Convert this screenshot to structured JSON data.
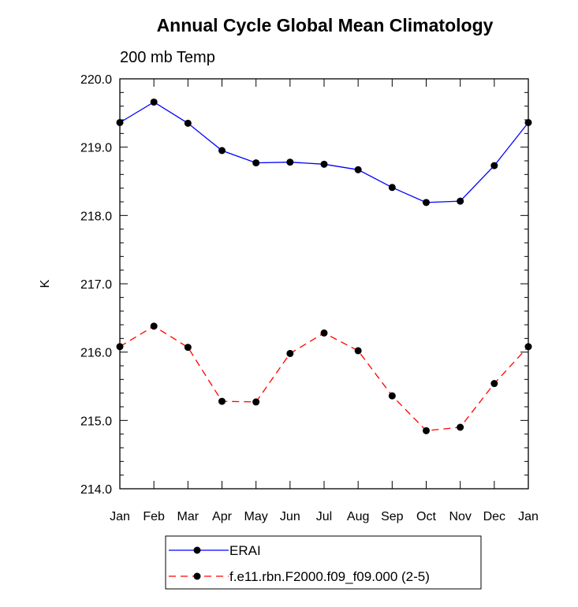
{
  "chart_data": {
    "type": "line",
    "title": "Annual Cycle Global Mean Climatology",
    "subtitle": "200 mb Temp",
    "xlabel": "",
    "ylabel": "K",
    "categories": [
      "Jan",
      "Feb",
      "Mar",
      "Apr",
      "May",
      "Jun",
      "Jul",
      "Aug",
      "Sep",
      "Oct",
      "Nov",
      "Dec",
      "Jan"
    ],
    "ylim": [
      214.0,
      220.0
    ],
    "yticks": [
      214.0,
      215.0,
      216.0,
      217.0,
      218.0,
      219.0,
      220.0
    ],
    "ytick_labels": [
      "214.0",
      "215.0",
      "216.0",
      "217.0",
      "218.0",
      "219.0",
      "220.0"
    ],
    "series": [
      {
        "name": "ERAI",
        "color": "#0000ff",
        "dash": "solid",
        "marker": "filled-circle",
        "values": [
          219.36,
          219.66,
          219.35,
          218.95,
          218.77,
          218.78,
          218.75,
          218.67,
          218.41,
          218.19,
          218.21,
          218.73,
          219.36
        ]
      },
      {
        "name": "f.e11.rbn.F2000.f09_f09.000 (2-5)",
        "color": "#ff0000",
        "dash": "dashed",
        "marker": "filled-circle",
        "values": [
          216.08,
          216.38,
          216.07,
          215.28,
          215.27,
          215.98,
          216.28,
          216.02,
          215.36,
          214.85,
          214.9,
          215.54,
          216.08
        ]
      }
    ],
    "legend_position": "bottom"
  }
}
